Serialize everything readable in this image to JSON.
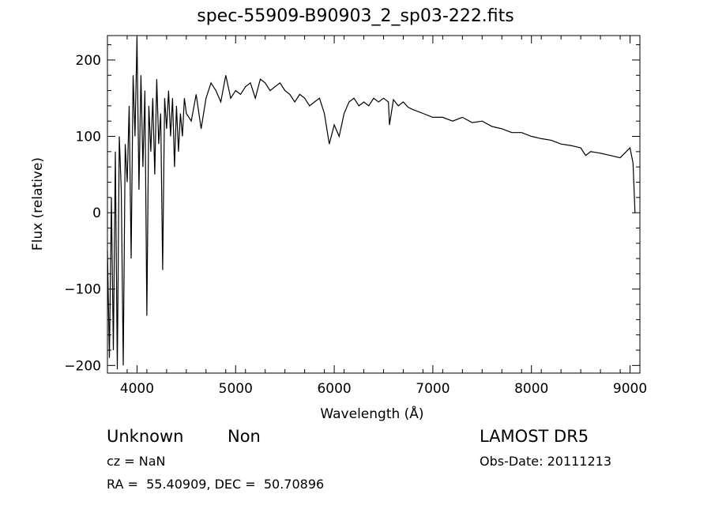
{
  "chart_data": {
    "type": "line",
    "title": "spec-55909-B90903_2_sp03-222.fits",
    "xlabel": "Wavelength (Å)",
    "ylabel": "Flux (relative)",
    "xlim": [
      3700,
      9100
    ],
    "ylim": [
      -210,
      232
    ],
    "xticks": [
      4000,
      5000,
      6000,
      7000,
      8000,
      9000
    ],
    "yticks": [
      -200,
      -100,
      0,
      100,
      200
    ],
    "ytick_labels": [
      "−200",
      "−100",
      "0",
      "100",
      "200"
    ],
    "grid": false,
    "legend": "none",
    "line_color": "#000000",
    "series": [
      {
        "x": [
          3700,
          3720,
          3740,
          3760,
          3780,
          3800,
          3820,
          3840,
          3860,
          3880,
          3900,
          3920,
          3940,
          3960,
          3980,
          4000,
          4020,
          4040,
          4060,
          4080,
          4100,
          4120,
          4140,
          4160,
          4180,
          4200,
          4220,
          4240,
          4260,
          4280,
          4300,
          4320,
          4340,
          4360,
          4380,
          4400,
          4420,
          4440,
          4460,
          4480,
          4500,
          4550,
          4600,
          4650,
          4700,
          4750,
          4800,
          4850,
          4900,
          4950,
          5000,
          5050,
          5100,
          5150,
          5200,
          5250,
          5300,
          5350,
          5400,
          5450,
          5500,
          5550,
          5600,
          5650,
          5700,
          5750,
          5800,
          5850,
          5900,
          5950,
          6000,
          6050,
          6100,
          6150,
          6200,
          6250,
          6300,
          6350,
          6400,
          6450,
          6500,
          6550,
          6560,
          6600,
          6650,
          6700,
          6750,
          6800,
          6900,
          7000,
          7100,
          7200,
          7300,
          7400,
          7500,
          7600,
          7700,
          7800,
          7900,
          8000,
          8100,
          8200,
          8300,
          8400,
          8500,
          8550,
          8600,
          8700,
          8800,
          8900,
          9000,
          9030,
          9050
        ],
        "y": [
          -50,
          -190,
          20,
          -180,
          80,
          -205,
          100,
          30,
          -200,
          90,
          40,
          140,
          -60,
          180,
          100,
          230,
          30,
          180,
          60,
          160,
          -135,
          140,
          80,
          150,
          50,
          175,
          90,
          130,
          -75,
          150,
          110,
          160,
          100,
          150,
          60,
          140,
          80,
          130,
          100,
          150,
          130,
          120,
          155,
          110,
          150,
          170,
          160,
          145,
          180,
          150,
          160,
          155,
          165,
          170,
          150,
          175,
          170,
          160,
          165,
          170,
          160,
          155,
          145,
          155,
          150,
          140,
          145,
          150,
          130,
          90,
          115,
          100,
          130,
          145,
          150,
          140,
          145,
          140,
          150,
          145,
          150,
          145,
          115,
          148,
          140,
          145,
          138,
          135,
          130,
          125,
          125,
          120,
          125,
          118,
          120,
          113,
          110,
          105,
          105,
          100,
          97,
          95,
          90,
          88,
          85,
          75,
          80,
          78,
          75,
          72,
          85,
          65,
          0
        ]
      }
    ],
    "annotations": {
      "object_class": "Unknown",
      "object_subclass": "Non",
      "survey": "LAMOST DR5",
      "cz": "cz = NaN",
      "obs_date": "Obs-Date: 20111213",
      "coords": "RA =  55.40909, DEC =  50.70896"
    }
  }
}
